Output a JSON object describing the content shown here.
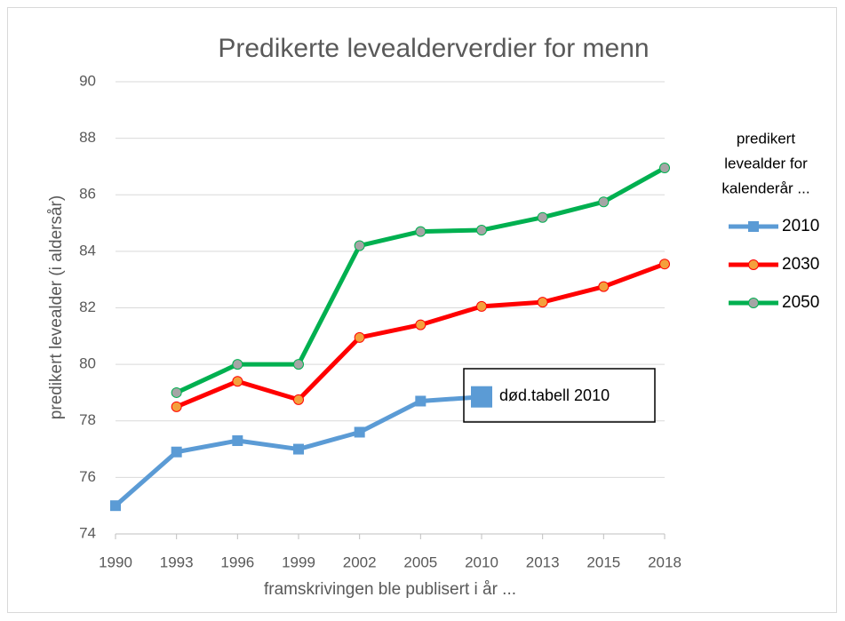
{
  "chart_data": {
    "type": "line",
    "title": "Predikerte levealderverdier for menn",
    "x_label": "framskrivingen ble publisert i år ...",
    "y_label": "predikert levealder (i aldersår)",
    "categories": [
      "1990",
      "1993",
      "1996",
      "1999",
      "2002",
      "2005",
      "2010",
      "2013",
      "2015",
      "2018"
    ],
    "series": [
      {
        "name": "2010",
        "color": "#5b9bd5",
        "marker": "square",
        "marker_fill": "#5b9bd5",
        "values": [
          75.0,
          76.9,
          77.3,
          77.0,
          77.6,
          78.7,
          78.85,
          null,
          null,
          null
        ]
      },
      {
        "name": "2030",
        "color": "#ff0000",
        "marker": "circle",
        "marker_fill": "#f4a03c",
        "values": [
          null,
          78.5,
          79.4,
          78.75,
          80.95,
          81.4,
          82.05,
          82.2,
          82.75,
          83.55
        ]
      },
      {
        "name": "2050",
        "color": "#00b050",
        "marker": "circle",
        "marker_fill": "#a5a5a5",
        "values": [
          null,
          79.0,
          80.0,
          80.0,
          84.2,
          84.7,
          84.75,
          85.2,
          85.75,
          86.95
        ]
      }
    ],
    "ylim": [
      74,
      90
    ],
    "yticks": [
      74,
      76,
      78,
      80,
      82,
      84,
      86,
      88,
      90
    ],
    "grid": true,
    "legend_title": [
      "predikert",
      "levealder for",
      "kalenderår ..."
    ],
    "legend_position": "right",
    "annotations": [
      {
        "text": "død.tabell 2010"
      }
    ]
  }
}
